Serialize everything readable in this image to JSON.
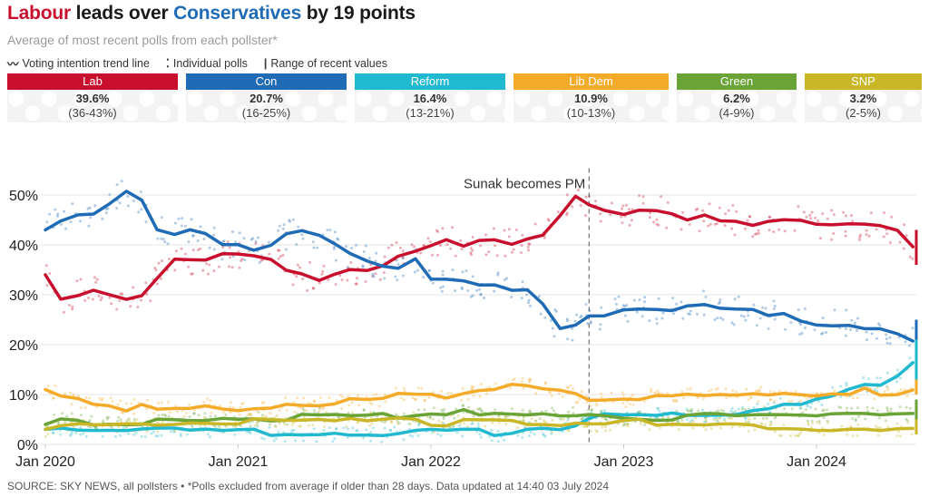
{
  "header": {
    "title_part1": "Labour",
    "title_part2": " leads over ",
    "title_part3": "Conservatives",
    "title_part4": " by 19 points",
    "subtitle": "Average of most recent polls from each pollster*"
  },
  "legend": {
    "trend_icon": "wave-icon",
    "trend_label": "Voting intention trend line",
    "polls_icon": "colon-dots-icon",
    "polls_label": "Individual polls",
    "range_icon": "vertical-bar-icon",
    "range_label": "Range of recent values"
  },
  "parties": [
    {
      "name": "Lab",
      "value": "39.6%",
      "range": "(36-43%)",
      "color": "#c8102e"
    },
    {
      "name": "Con",
      "value": "20.7%",
      "range": "(16-25%)",
      "color": "#1f6bb5"
    },
    {
      "name": "Reform",
      "value": "16.4%",
      "range": "(13-21%)",
      "color": "#21b9cf"
    },
    {
      "name": "Lib Dem",
      "value": "10.9%",
      "range": "(10-13%)",
      "color": "#f5ab2a"
    },
    {
      "name": "Green",
      "value": "6.2%",
      "range": "(4-9%)",
      "color": "#6aa336"
    },
    {
      "name": "SNP",
      "value": "3.2%",
      "range": "(2-5%)",
      "color": "#c9b728"
    }
  ],
  "footer": "SOURCE: SKY NEWS, all pollsters • *Polls excluded from average if older than 28 days. Data updated at 14:40 03 July 2024",
  "chart_data": {
    "type": "line",
    "title": "Labour leads over Conservatives by 19 points",
    "xlabel": "",
    "ylabel": "",
    "ylim": [
      0,
      55
    ],
    "yticks": [
      0,
      10,
      20,
      30,
      40,
      50
    ],
    "ytick_labels": [
      "0%",
      "10%",
      "20%",
      "30%",
      "40%",
      "50%"
    ],
    "xticks": [
      "Jan 2020",
      "Jan 2021",
      "Jan 2022",
      "Jan 2023",
      "Jan 2024"
    ],
    "xrange": [
      "2020-01",
      "2024-07"
    ],
    "grid": true,
    "legend": "top (summary cards)",
    "annotations": [
      {
        "text": "Sunak becomes PM",
        "x": "2022-10-25"
      }
    ],
    "x": [
      2020.0,
      2020.08,
      2020.17,
      2020.25,
      2020.33,
      2020.42,
      2020.5,
      2020.58,
      2020.67,
      2020.75,
      2020.83,
      2020.92,
      2021.0,
      2021.08,
      2021.17,
      2021.25,
      2021.33,
      2021.42,
      2021.5,
      2021.58,
      2021.67,
      2021.75,
      2021.83,
      2021.92,
      2022.0,
      2022.08,
      2022.17,
      2022.25,
      2022.33,
      2022.42,
      2022.5,
      2022.58,
      2022.67,
      2022.75,
      2022.82,
      2022.9,
      2023.0,
      2023.08,
      2023.17,
      2023.25,
      2023.33,
      2023.42,
      2023.5,
      2023.58,
      2023.67,
      2023.75,
      2023.83,
      2023.92,
      2024.0,
      2024.08,
      2024.17,
      2024.25,
      2024.33,
      2024.42,
      2024.5
    ],
    "series": [
      {
        "name": "Lab",
        "color": "#c8102e",
        "values": [
          34,
          29,
          30,
          31,
          30,
          29,
          30,
          33,
          37,
          37,
          37,
          38,
          38,
          38,
          37,
          35,
          34,
          33,
          34,
          35,
          35,
          36,
          38,
          39,
          40,
          41,
          40,
          41,
          41,
          40,
          41,
          42,
          46,
          50,
          48,
          47,
          46,
          47,
          47,
          46,
          45,
          46,
          45,
          45,
          44,
          45,
          45,
          45,
          44,
          44,
          44,
          44,
          44,
          43,
          39.6
        ]
      },
      {
        "name": "Con",
        "color": "#1f6bb5",
        "values": [
          43,
          45,
          46,
          46,
          48,
          51,
          49,
          43,
          42,
          43,
          42,
          40,
          40,
          39,
          40,
          42,
          43,
          42,
          40,
          38,
          37,
          36,
          35,
          37,
          33,
          33,
          33,
          32,
          32,
          31,
          31,
          28,
          23,
          24,
          26,
          26,
          27,
          27,
          27,
          27,
          28,
          28,
          27,
          27,
          27,
          26,
          26,
          25,
          24,
          24,
          24,
          23,
          23,
          22,
          20.7
        ]
      },
      {
        "name": "Reform",
        "color": "#21b9cf",
        "values": [
          3,
          3,
          3,
          3,
          3,
          3,
          3,
          3,
          3,
          3,
          3,
          3,
          3,
          3,
          2,
          2,
          2,
          2,
          2,
          2,
          2,
          2,
          2,
          3,
          3,
          3,
          3,
          3,
          2,
          2,
          3,
          3,
          3,
          4,
          5,
          6,
          6,
          6,
          6,
          6,
          6,
          6,
          6,
          6,
          7,
          7,
          8,
          8,
          9,
          10,
          11,
          12,
          12,
          14,
          16.4
        ]
      },
      {
        "name": "Lib Dem",
        "color": "#f5ab2a",
        "values": [
          11,
          10,
          9,
          8,
          8,
          7,
          8,
          7,
          7,
          7,
          8,
          7,
          7,
          7,
          7,
          8,
          8,
          8,
          8,
          9,
          9,
          9,
          10,
          10,
          10,
          9,
          10,
          11,
          11,
          12,
          12,
          11,
          11,
          10,
          9,
          9,
          9,
          9,
          10,
          10,
          10,
          10,
          10,
          10,
          10,
          10,
          10,
          10,
          10,
          10,
          10,
          11,
          10,
          10,
          10.9
        ]
      },
      {
        "name": "Green",
        "color": "#6aa336",
        "values": [
          4,
          5,
          5,
          4,
          4,
          4,
          4,
          5,
          5,
          5,
          5,
          5,
          5,
          5,
          5,
          5,
          6,
          6,
          6,
          6,
          6,
          6,
          5,
          6,
          6,
          6,
          7,
          6,
          6,
          6,
          6,
          6,
          6,
          6,
          6,
          6,
          5,
          5,
          5,
          5,
          6,
          6,
          6,
          6,
          6,
          6,
          6,
          6,
          6,
          6,
          6,
          6,
          6,
          6,
          6.2
        ]
      },
      {
        "name": "SNP",
        "color": "#c9b728",
        "values": [
          3,
          4,
          4,
          4,
          4,
          4,
          4,
          4,
          4,
          4,
          4,
          4,
          4,
          5,
          5,
          5,
          5,
          5,
          5,
          5,
          5,
          5,
          5,
          5,
          4,
          4,
          5,
          5,
          5,
          5,
          4,
          4,
          4,
          4,
          4,
          4,
          5,
          5,
          4,
          4,
          4,
          4,
          4,
          4,
          4,
          3,
          3,
          3,
          3,
          3,
          3,
          3,
          3,
          3,
          3.2
        ]
      }
    ],
    "ranges": [
      {
        "name": "Lab",
        "low": 36,
        "high": 43
      },
      {
        "name": "Con",
        "low": 16,
        "high": 25
      },
      {
        "name": "Reform",
        "low": 13,
        "high": 21
      },
      {
        "name": "Lib Dem",
        "low": 10,
        "high": 13
      },
      {
        "name": "Green",
        "low": 4,
        "high": 9
      },
      {
        "name": "SNP",
        "low": 2,
        "high": 5
      }
    ]
  }
}
